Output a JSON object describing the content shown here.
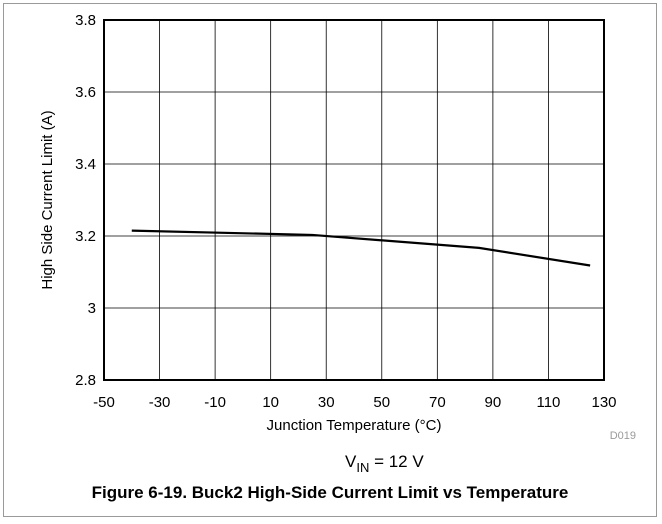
{
  "chart_data": {
    "type": "line",
    "xlabel": "Junction Temperature (°C)",
    "ylabel": "High Side Current Limit (A)",
    "xlim": [
      -50,
      130
    ],
    "ylim": [
      2.8,
      3.8
    ],
    "x_ticks": [
      "-50",
      "-30",
      "-10",
      "10",
      "30",
      "50",
      "70",
      "90",
      "110",
      "130"
    ],
    "y_ticks": [
      "2.8",
      "3",
      "3.2",
      "3.4",
      "3.6",
      "3.8"
    ],
    "grid": true,
    "series": [
      {
        "x": [
          -40,
          25,
          85,
          125
        ],
        "y": [
          3.215,
          3.203,
          3.167,
          3.118
        ]
      }
    ],
    "annotations": {
      "code": "D019",
      "condition_main": "V",
      "condition_sub": "IN",
      "condition_rest": " = 12 V"
    }
  },
  "caption": "Figure 6-19. Buck2 High-Side Current Limit vs Temperature"
}
